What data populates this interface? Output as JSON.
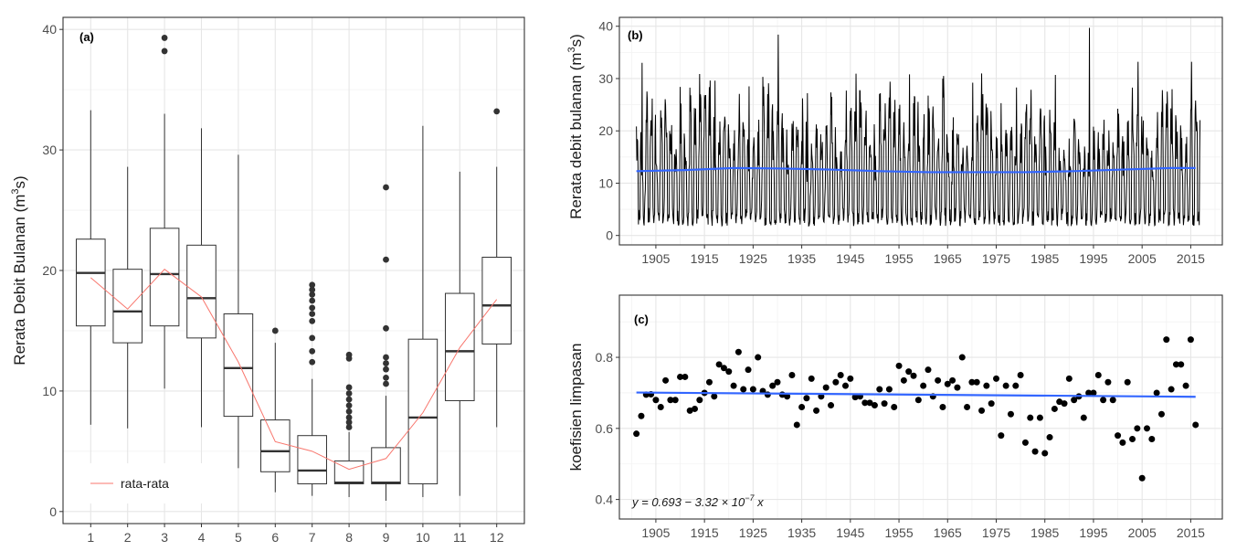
{
  "chart_data": [
    {
      "type": "box",
      "panel_label": "(a)",
      "ylabel": "Rerata Debit Bulanan (m3s)",
      "ylabel_main": "Rerata Debit Bulanan (m",
      "ylabel_sup": "3",
      "ylabel_tail": "s)",
      "ylim": [
        -1,
        41
      ],
      "yticks": [
        0,
        10,
        20,
        30,
        40
      ],
      "categories": [
        "1",
        "2",
        "3",
        "4",
        "5",
        "6",
        "7",
        "8",
        "9",
        "10",
        "11",
        "12"
      ],
      "boxes": [
        {
          "month": "1",
          "min": 7.2,
          "q1": 15.4,
          "median": 19.8,
          "q3": 22.6,
          "max": 33.3,
          "outliers": []
        },
        {
          "month": "2",
          "min": 6.9,
          "q1": 14.0,
          "median": 16.6,
          "q3": 20.1,
          "max": 28.6,
          "outliers": []
        },
        {
          "month": "3",
          "min": 10.2,
          "q1": 15.4,
          "median": 19.7,
          "q3": 23.5,
          "max": 33.0,
          "outliers": [
            38.2,
            39.3
          ]
        },
        {
          "month": "4",
          "min": 7.0,
          "q1": 14.4,
          "median": 17.7,
          "q3": 22.1,
          "max": 31.8,
          "outliers": []
        },
        {
          "month": "5",
          "min": 3.6,
          "q1": 7.9,
          "median": 11.9,
          "q3": 16.4,
          "max": 29.6,
          "outliers": []
        },
        {
          "month": "6",
          "min": 1.6,
          "q1": 3.3,
          "median": 5.0,
          "q3": 7.6,
          "max": 14.0,
          "outliers": [
            15.0
          ]
        },
        {
          "month": "7",
          "min": 1.3,
          "q1": 2.3,
          "median": 3.4,
          "q3": 6.3,
          "max": 11.0,
          "outliers": [
            12.4,
            13.3,
            14.4,
            15.8,
            16.4,
            16.9,
            17.5,
            18.0,
            18.4,
            18.8
          ]
        },
        {
          "month": "8",
          "min": 1.2,
          "q1": 2.3,
          "median": 2.4,
          "q3": 4.2,
          "max": 6.6,
          "outliers": [
            7.0,
            7.4,
            7.8,
            8.3,
            8.8,
            9.3,
            9.8,
            10.3,
            12.7,
            13.0
          ]
        },
        {
          "month": "9",
          "min": 0.9,
          "q1": 2.3,
          "median": 2.4,
          "q3": 5.3,
          "max": 9.6,
          "outliers": [
            10.6,
            11.1,
            11.8,
            12.3,
            12.8,
            15.2,
            20.9,
            26.9
          ]
        },
        {
          "month": "10",
          "min": 1.2,
          "q1": 2.3,
          "median": 7.8,
          "q3": 14.3,
          "max": 32.0,
          "outliers": []
        },
        {
          "month": "11",
          "min": 1.3,
          "q1": 9.2,
          "median": 13.3,
          "q3": 18.1,
          "max": 28.2,
          "outliers": []
        },
        {
          "month": "12",
          "min": 7.0,
          "q1": 13.9,
          "median": 17.1,
          "q3": 21.1,
          "max": 28.6,
          "outliers": [
            33.2
          ]
        }
      ],
      "mean_series": {
        "name": "rata-rata",
        "color": "#f8766d",
        "values": [
          19.4,
          16.8,
          20.1,
          17.8,
          12.4,
          5.8,
          5.0,
          3.5,
          4.4,
          8.2,
          13.6,
          17.6
        ]
      },
      "legend": "bottom-left",
      "grid": true
    },
    {
      "type": "line",
      "panel_label": "(b)",
      "ylabel": "Rerata debit bulanan (m3s)",
      "ylabel_main": "Rerata debit bulanan (m",
      "ylabel_sup": "3",
      "ylabel_tail": "s)",
      "x_range": [
        1897.5,
        2021.5
      ],
      "ylim": [
        -1.8,
        41.7
      ],
      "xticks": [
        1905,
        1915,
        1925,
        1935,
        1945,
        1955,
        1965,
        1975,
        1985,
        1995,
        2005,
        2015
      ],
      "yticks": [
        0,
        10,
        20,
        30,
        40
      ],
      "series_monthly": {
        "start_year": 1901,
        "end_year": 2016,
        "color": "#000000",
        "seasonal_cycle": [
          19.4,
          16.8,
          20.1,
          17.8,
          12.4,
          5.8,
          5.0,
          3.5,
          4.4,
          8.2,
          13.6,
          17.6
        ],
        "annual_peaks": {
          "1902": 33.0,
          "1912": 26.8,
          "1917": 29.6,
          "1924": 28.5,
          "1930": 38.4,
          "1936": 27.2,
          "1944": 27.7,
          "1953": 29.4,
          "1957": 30.8,
          "1970": 29.2,
          "1979": 28.3,
          "1987": 30.7,
          "1994": 39.7,
          "2004": 33.2,
          "2015": 33.2
        }
      },
      "trend": {
        "name": "trend",
        "color": "#3366ff",
        "x": [
          1901,
          1911,
          1921,
          1931,
          1941,
          1951,
          1961,
          1971,
          1981,
          1991,
          2001,
          2011,
          2016
        ],
        "y": [
          12.3,
          12.5,
          12.9,
          12.8,
          12.6,
          12.3,
          12.1,
          12.1,
          12.1,
          12.3,
          12.6,
          12.9,
          12.9
        ]
      },
      "grid": true
    },
    {
      "type": "scatter",
      "panel_label": "(c)",
      "ylabel": "koefisien limpasan",
      "x_range": [
        1897.5,
        2021.5
      ],
      "ylim": [
        0.345,
        0.975
      ],
      "xticks": [
        1905,
        1915,
        1925,
        1935,
        1945,
        1955,
        1965,
        1975,
        1985,
        1995,
        2005,
        2015
      ],
      "yticks": [
        0.4,
        0.6,
        0.8
      ],
      "annotation_text": "y = 0.693 − 3.32 × 10",
      "annotation_exp": "−7",
      "annotation_tail": " x",
      "points": {
        "x": [
          1901,
          1902,
          1903,
          1904,
          1905,
          1906,
          1907,
          1908,
          1909,
          1910,
          1911,
          1912,
          1913,
          1914,
          1915,
          1916,
          1917,
          1918,
          1919,
          1920,
          1921,
          1922,
          1923,
          1924,
          1925,
          1926,
          1927,
          1928,
          1929,
          1930,
          1931,
          1932,
          1933,
          1934,
          1935,
          1936,
          1937,
          1938,
          1939,
          1940,
          1941,
          1942,
          1943,
          1944,
          1945,
          1946,
          1947,
          1948,
          1949,
          1950,
          1951,
          1952,
          1953,
          1954,
          1955,
          1956,
          1957,
          1958,
          1959,
          1960,
          1961,
          1962,
          1963,
          1964,
          1965,
          1966,
          1967,
          1968,
          1969,
          1970,
          1971,
          1972,
          1973,
          1974,
          1975,
          1976,
          1977,
          1978,
          1979,
          1980,
          1981,
          1982,
          1983,
          1984,
          1985,
          1986,
          1987,
          1988,
          1989,
          1990,
          1991,
          1992,
          1993,
          1994,
          1995,
          1996,
          1997,
          1998,
          1999,
          2000,
          2001,
          2002,
          2003,
          2004,
          2005,
          2006,
          2007,
          2008,
          2009,
          2010,
          2011,
          2012,
          2013,
          2014,
          2015,
          2016
        ],
        "y": [
          0.585,
          0.635,
          0.695,
          0.696,
          0.68,
          0.66,
          0.735,
          0.68,
          0.68,
          0.745,
          0.745,
          0.65,
          0.655,
          0.68,
          0.7,
          0.73,
          0.69,
          0.78,
          0.77,
          0.76,
          0.72,
          0.815,
          0.71,
          0.765,
          0.71,
          0.8,
          0.705,
          0.695,
          0.72,
          0.73,
          0.695,
          0.69,
          0.75,
          0.61,
          0.66,
          0.685,
          0.74,
          0.65,
          0.69,
          0.715,
          0.665,
          0.73,
          0.75,
          0.72,
          0.74,
          0.688,
          0.69,
          0.672,
          0.672,
          0.665,
          0.71,
          0.67,
          0.71,
          0.66,
          0.776,
          0.735,
          0.76,
          0.748,
          0.68,
          0.72,
          0.765,
          0.69,
          0.735,
          0.66,
          0.725,
          0.735,
          0.715,
          0.8,
          0.66,
          0.73,
          0.73,
          0.65,
          0.72,
          0.67,
          0.74,
          0.58,
          0.72,
          0.64,
          0.72,
          0.75,
          0.56,
          0.63,
          0.535,
          0.63,
          0.53,
          0.575,
          0.655,
          0.675,
          0.67,
          0.74,
          0.68,
          0.69,
          0.63,
          0.7,
          0.7,
          0.75,
          0.68,
          0.73,
          0.68,
          0.58,
          0.56,
          0.73,
          0.57,
          0.6,
          0.46,
          0.6,
          0.57,
          0.7,
          0.64,
          0.85,
          0.71,
          0.78,
          0.78,
          0.72,
          0.85,
          0.61
        ]
      },
      "trend": {
        "name": "trend",
        "color": "#3366ff",
        "x": [
          1901,
          2016
        ],
        "y": [
          0.701,
          0.689
        ]
      },
      "grid": true
    }
  ]
}
